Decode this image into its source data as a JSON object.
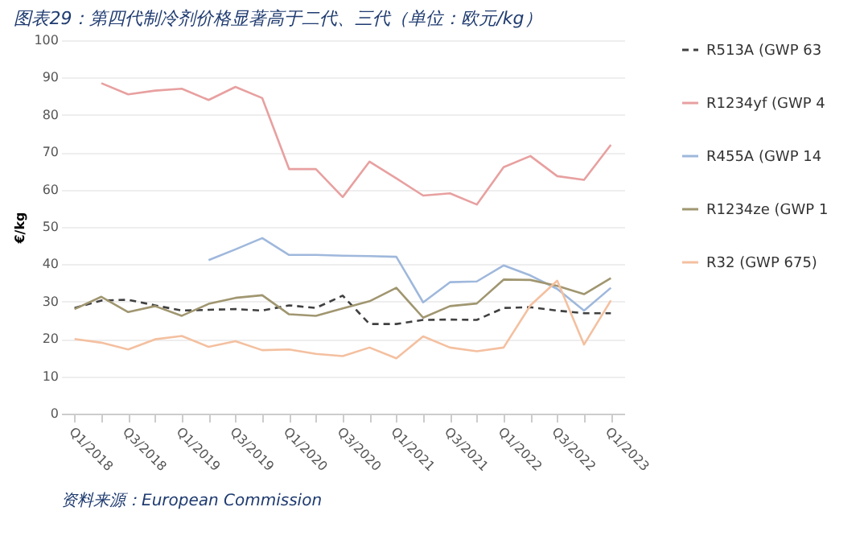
{
  "chart_data": {
    "type": "line",
    "title": "图表29：第四代制冷剂价格显著高于二代、三代（单位：欧元/kg）",
    "ylabel": "€/kg",
    "categories": [
      "Q1/2018",
      null,
      "Q3/2018",
      null,
      "Q1/2019",
      null,
      "Q3/2019",
      null,
      "Q1/2020",
      null,
      "Q3/2020",
      null,
      "Q1/2021",
      null,
      "Q3/2021",
      null,
      "Q1/2022",
      null,
      "Q3/2022",
      null,
      "Q1/2023"
    ],
    "ylim": [
      0,
      100
    ],
    "yticks": [
      0,
      10,
      20,
      30,
      40,
      50,
      60,
      70,
      80,
      90,
      100
    ],
    "grid": "y",
    "legend": "right",
    "series": [
      {
        "name": "R513A (GWP 63",
        "color": "#404040",
        "line_style": "dashed",
        "values": [
          28.3,
          30.3,
          30.5,
          29,
          27.6,
          27.8,
          28,
          27.6,
          29,
          28.3,
          31.6,
          24,
          24,
          25.1,
          25.2,
          25.1,
          28.3,
          28.5,
          27.6,
          26.9,
          26.9
        ]
      },
      {
        "name": "R1234yf (GWP 4",
        "color": "#e8a0a0",
        "line_style": "solid",
        "values": [
          null,
          88.5,
          85.5,
          86.5,
          87,
          84,
          87.5,
          84.5,
          65.5,
          65.5,
          58,
          67.5,
          63,
          58.4,
          59,
          56,
          66,
          69,
          63.6,
          62.6,
          72
        ]
      },
      {
        "name": "R455A (GWP 14",
        "color": "#9fb8dc",
        "line_style": "solid",
        "values": [
          null,
          null,
          null,
          null,
          null,
          41.1,
          44,
          47,
          42.5,
          42.5,
          42.3,
          42.2,
          42,
          29.8,
          35.2,
          35.4,
          39.7,
          37,
          33.4,
          27.6,
          33.7
        ]
      },
      {
        "name": "R1234ze (GWP 1",
        "color": "#a09670",
        "line_style": "solid",
        "values": [
          28,
          31.3,
          27.2,
          28.8,
          26.2,
          29.4,
          31,
          31.7,
          26.6,
          26.2,
          28.2,
          30.1,
          33.7,
          25.7,
          28.8,
          29.5,
          35.9,
          35.8,
          34.2,
          32,
          36.3
        ]
      },
      {
        "name": "R32 (GWP 675)",
        "color": "#f4c0a0",
        "line_style": "solid",
        "values": [
          20,
          19,
          17.2,
          19.9,
          20.8,
          17.9,
          19.4,
          17,
          17.2,
          16,
          15.4,
          17.7,
          14.8,
          20.7,
          17.7,
          16.7,
          17.7,
          29,
          35.6,
          18.5,
          30.3
        ]
      }
    ],
    "annotations": [
      "资料来源：European Commission"
    ]
  }
}
